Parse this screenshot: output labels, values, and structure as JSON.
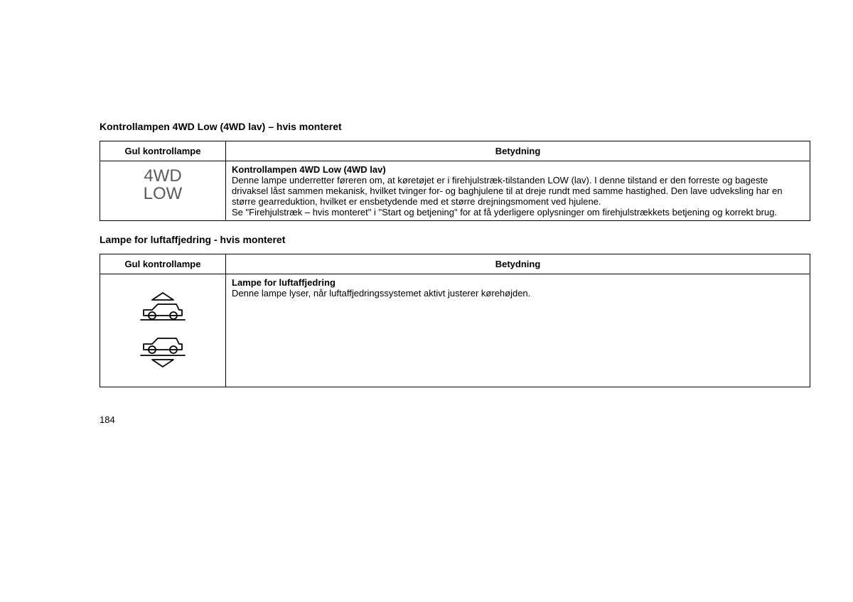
{
  "section1": {
    "title": "Kontrollampen 4WD Low (4WD lav) – hvis monteret",
    "header_left": "Gul kontrollampe",
    "header_right": "Betydning",
    "icon_line1": "4WD",
    "icon_line2": "LOW",
    "desc_title": "Kontrollampen 4WD Low (4WD lav)",
    "desc_body": "Denne lampe underretter føreren om, at køretøjet er i firehjulstræk-tilstanden LOW (lav). I denne tilstand er den forreste og bageste drivaksel låst sammen mekanisk, hvilket tvinger for- og baghjulene til at dreje rundt med samme hastighed. Den lave udveksling har en større gearreduktion, hvilket er ensbetydende med et større drejningsmoment ved hjulene.\nSe \"Firehjulstræk – hvis monteret\" i \"Start og betjening\" for at få yderligere oplysninger om firehjulstrækkets betjening og korrekt brug."
  },
  "section2": {
    "title": "Lampe for luftaffjedring - hvis monteret",
    "header_left": "Gul kontrollampe",
    "header_right": "Betydning",
    "desc_title": "Lampe for luftaffjedring",
    "desc_body": "Denne lampe lyser, når luftaffjedringssystemet aktivt justerer kørehøjden."
  },
  "page_number": "184"
}
